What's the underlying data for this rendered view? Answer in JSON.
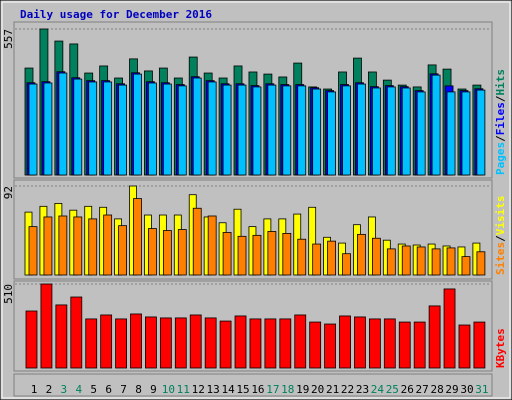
{
  "legend_separator": "/",
  "chart_data": [
    {
      "type": "bar",
      "title": "Daily usage for December 2016",
      "ylim": [
        0,
        557
      ],
      "yticks": [
        557
      ],
      "series": [
        {
          "name": "Pages",
          "color": "#00c0ff",
          "values": [
            347,
            351,
            389,
            366,
            355,
            355,
            343,
            385,
            351,
            347,
            340,
            370,
            355,
            343,
            343,
            336,
            343,
            340,
            340,
            328,
            317,
            340,
            347,
            332,
            336,
            332,
            317,
            381,
            317,
            317,
            324
          ]
        },
        {
          "name": "Files",
          "color": "#0000ff",
          "values": [
            352,
            356,
            394,
            371,
            360,
            360,
            348,
            390,
            356,
            352,
            345,
            375,
            360,
            348,
            348,
            341,
            348,
            345,
            345,
            333,
            322,
            345,
            352,
            337,
            341,
            337,
            322,
            386,
            340,
            322,
            329
          ]
        },
        {
          "name": "Hits",
          "color": "#00805c",
          "values": [
            408,
            557,
            511,
            500,
            389,
            416,
            370,
            443,
            397,
            408,
            370,
            450,
            389,
            370,
            416,
            393,
            385,
            374,
            427,
            336,
            328,
            393,
            446,
            393,
            362,
            343,
            336,
            420,
            404,
            328,
            343
          ]
        }
      ]
    },
    {
      "type": "bar",
      "ylim": [
        0,
        92
      ],
      "yticks": [
        92
      ],
      "series": [
        {
          "name": "Sites",
          "color": "#ff8000",
          "values": [
            50,
            60,
            61,
            60,
            58,
            62,
            51,
            79,
            48,
            46,
            47,
            69,
            61,
            44,
            40,
            41,
            45,
            43,
            37,
            32,
            35,
            22,
            42,
            38,
            27,
            30,
            29,
            27,
            28,
            19,
            24
          ]
        },
        {
          "name": "Visits",
          "color": "#ffff00",
          "values": [
            65,
            71,
            74,
            67,
            71,
            70,
            58,
            92,
            62,
            62,
            62,
            83,
            60,
            54,
            68,
            50,
            58,
            58,
            63,
            70,
            39,
            33,
            52,
            60,
            36,
            32,
            31,
            32,
            30,
            29,
            33
          ]
        }
      ]
    },
    {
      "type": "bar",
      "ylim": [
        0,
        510
      ],
      "yticks": [
        510
      ],
      "categories": [
        "1",
        "2",
        "3",
        "4",
        "5",
        "6",
        "7",
        "8",
        "9",
        "10",
        "11",
        "12",
        "13",
        "14",
        "15",
        "16",
        "17",
        "18",
        "19",
        "20",
        "21",
        "22",
        "23",
        "24",
        "25",
        "26",
        "27",
        "28",
        "29",
        "30",
        "31"
      ],
      "category_colors": [
        "#000000",
        "#000000",
        "#00805c",
        "#00805c",
        "#000000",
        "#000000",
        "#000000",
        "#000000",
        "#000000",
        "#00805c",
        "#00805c",
        "#000000",
        "#000000",
        "#000000",
        "#000000",
        "#000000",
        "#00805c",
        "#00805c",
        "#000000",
        "#000000",
        "#000000",
        "#000000",
        "#000000",
        "#00805c",
        "#00805c",
        "#000000",
        "#000000",
        "#000000",
        "#000000",
        "#000000",
        "#00805c"
      ],
      "series": [
        {
          "name": "KBytes",
          "color": "#ff0000",
          "values": [
            346,
            510,
            383,
            431,
            298,
            322,
            298,
            328,
            310,
            304,
            304,
            322,
            304,
            285,
            316,
            298,
            298,
            298,
            322,
            279,
            267,
            316,
            310,
            298,
            298,
            279,
            279,
            377,
            480,
            261,
            279
          ]
        }
      ]
    }
  ]
}
